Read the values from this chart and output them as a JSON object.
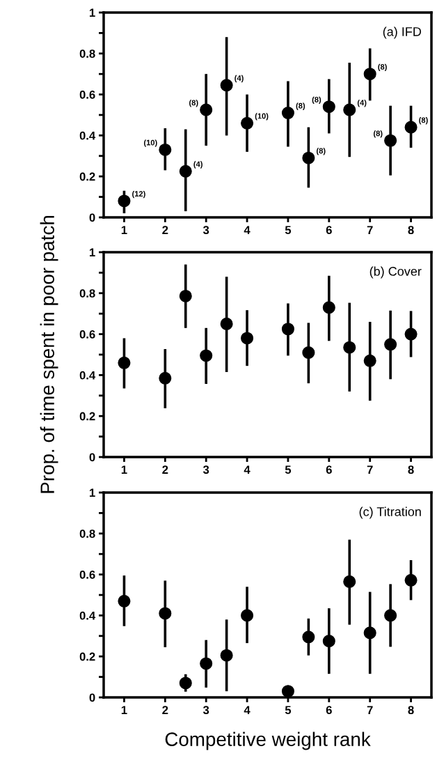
{
  "chart_data": [
    {
      "type": "scatter",
      "x": [
        1,
        2,
        2.5,
        3,
        3.5,
        4,
        5,
        5.5,
        6,
        6.5,
        7,
        7.5,
        8
      ],
      "marker": "circle",
      "grid": false,
      "legend": false,
      "series": [
        {
          "color": "#000000",
          "values": [
            0.08,
            0.33,
            0.225,
            0.525,
            0.645,
            0.46,
            0.51,
            0.29,
            0.54,
            0.525,
            0.7,
            0.375,
            0.44
          ],
          "errors": [
            [
              0.02,
              0.13
            ],
            [
              0.23,
              0.435
            ],
            [
              0.03,
              0.43
            ],
            [
              0.35,
              0.7
            ],
            [
              0.4,
              0.88
            ],
            [
              0.32,
              0.6
            ],
            [
              0.345,
              0.665
            ],
            [
              0.145,
              0.44
            ],
            [
              0.41,
              0.675
            ],
            [
              0.295,
              0.755
            ],
            [
              0.57,
              0.825
            ],
            [
              0.205,
              0.545
            ],
            [
              0.34,
              0.545
            ]
          ]
        }
      ],
      "xlim": [
        0.5,
        8.5
      ],
      "xticks": [
        1,
        2,
        3,
        4,
        5,
        6,
        7,
        8
      ],
      "ylim": [
        0,
        1
      ],
      "yticks": [
        0,
        {
          "value": 0.1,
          "label": null
        },
        0.2,
        {
          "value": 0.3,
          "label": null
        },
        0.4,
        {
          "value": 0.5,
          "label": null
        },
        0.6,
        {
          "value": 0.7,
          "label": null
        },
        0.8,
        {
          "value": 0.9,
          "label": null
        },
        1
      ],
      "annotations": [
        "(a) IFD",
        {
          "text": "(12)",
          "x": 1,
          "y": 0.08
        },
        {
          "text": "(10)",
          "x": 2,
          "y": 0.33
        },
        {
          "text": "(4)",
          "x": 2.5,
          "y": 0.225
        },
        {
          "text": "(8)",
          "x": 3,
          "y": 0.525
        },
        {
          "text": "(4)",
          "x": 3.5,
          "y": 0.645
        },
        {
          "text": "(10)",
          "x": 4,
          "y": 0.46
        },
        {
          "text": "(8)",
          "x": 5,
          "y": 0.51
        },
        {
          "text": "(8)",
          "x": 5.5,
          "y": 0.29
        },
        {
          "text": "(8)",
          "x": 6,
          "y": 0.54
        },
        {
          "text": "(4)",
          "x": 6.5,
          "y": 0.525
        },
        {
          "text": "(8)",
          "x": 7,
          "y": 0.7
        },
        {
          "text": "(8)",
          "x": 7.5,
          "y": 0.375
        },
        {
          "text": "(8)",
          "x": 8,
          "y": 0.44
        }
      ]
    },
    {
      "type": "scatter",
      "x": [
        1,
        2,
        2.5,
        3,
        3.5,
        4,
        5,
        5.5,
        6,
        6.5,
        7,
        7.5,
        8
      ],
      "marker": "circle",
      "grid": false,
      "legend": false,
      "ylabel": "Prop. of time spent in poor patch",
      "series": [
        {
          "color": "#000000",
          "values": [
            0.46,
            0.385,
            0.786,
            0.495,
            0.65,
            0.58,
            0.625,
            0.51,
            0.73,
            0.535,
            0.47,
            0.55,
            0.6
          ],
          "errors": [
            [
              0.335,
              0.58
            ],
            [
              0.238,
              0.527
            ],
            [
              0.63,
              0.94
            ],
            [
              0.357,
              0.63
            ],
            [
              0.415,
              0.88
            ],
            [
              0.445,
              0.717
            ],
            [
              0.495,
              0.75
            ],
            [
              0.36,
              0.655
            ],
            [
              0.567,
              0.885
            ],
            [
              0.32,
              0.753
            ],
            [
              0.275,
              0.66
            ],
            [
              0.38,
              0.715
            ],
            [
              0.488,
              0.713
            ]
          ]
        }
      ],
      "xlim": [
        0.5,
        8.5
      ],
      "xticks": [
        1,
        2,
        3,
        4,
        5,
        6,
        7,
        8
      ],
      "ylim": [
        0,
        1
      ],
      "yticks": [
        0,
        {
          "value": 0.1,
          "label": null
        },
        0.2,
        {
          "value": 0.3,
          "label": null
        },
        0.4,
        {
          "value": 0.5,
          "label": null
        },
        0.6,
        {
          "value": 0.7,
          "label": null
        },
        0.8,
        {
          "value": 0.9,
          "label": null
        },
        1
      ],
      "annotations": [
        "(b) Cover"
      ]
    },
    {
      "type": "scatter",
      "x": [
        1,
        2,
        2.5,
        3,
        3.5,
        4,
        5,
        5.5,
        6,
        6.5,
        7,
        7.5,
        8
      ],
      "marker": "circle",
      "grid": false,
      "legend": false,
      "xlabel": "Competitive weight rank",
      "series": [
        {
          "color": "#000000",
          "values": [
            0.47,
            0.41,
            0.07,
            0.165,
            0.205,
            0.4,
            0.03,
            0.295,
            0.275,
            0.565,
            0.315,
            0.4,
            0.572
          ],
          "errors": [
            [
              0.348,
              0.595
            ],
            [
              0.245,
              0.57
            ],
            [
              0.028,
              0.113
            ],
            [
              0.048,
              0.28
            ],
            [
              0.03,
              0.38
            ],
            [
              0.265,
              0.54
            ],
            null,
            [
              0.205,
              0.385
            ],
            [
              0.115,
              0.435
            ],
            [
              0.355,
              0.77
            ],
            [
              0.115,
              0.515
            ],
            [
              0.247,
              0.553
            ],
            [
              0.475,
              0.67
            ]
          ]
        }
      ],
      "xlim": [
        0.5,
        8.5
      ],
      "xticks": [
        1,
        2,
        3,
        4,
        5,
        6,
        7,
        8
      ],
      "ylim": [
        0,
        1
      ],
      "yticks": [
        0,
        {
          "value": 0.1,
          "label": null
        },
        0.2,
        {
          "value": 0.3,
          "label": null
        },
        0.4,
        {
          "value": 0.5,
          "label": null
        },
        0.6,
        {
          "value": 0.7,
          "label": null
        },
        0.8,
        {
          "value": 0.9,
          "label": null
        },
        1
      ],
      "annotations": [
        "(c) Titration"
      ]
    }
  ]
}
